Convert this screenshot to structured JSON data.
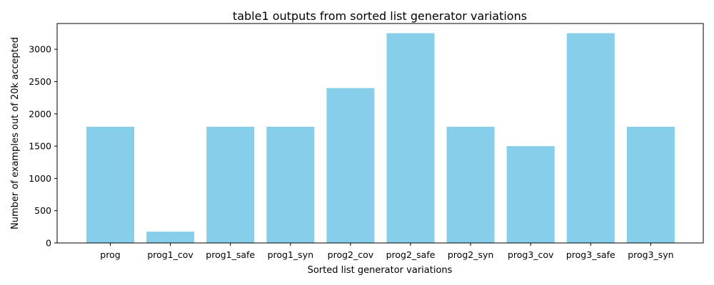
{
  "chart_data": {
    "type": "bar",
    "title": "table1 outputs from sorted list generator variations",
    "xlabel": "Sorted list generator variations",
    "ylabel": "Number of examples out of 20k accepted",
    "categories": [
      "prog",
      "prog1_cov",
      "prog1_safe",
      "prog1_syn",
      "prog2_cov",
      "prog2_safe",
      "prog2_syn",
      "prog3_cov",
      "prog3_safe",
      "prog3_syn"
    ],
    "values": [
      1800,
      175,
      1800,
      1800,
      2400,
      3250,
      1800,
      1500,
      3250,
      1800
    ],
    "ylim": [
      0,
      3400
    ],
    "yticks": [
      0,
      500,
      1000,
      1500,
      2000,
      2500,
      3000
    ],
    "bar_color": "#87ceeb",
    "grid": false,
    "legend": "none"
  }
}
